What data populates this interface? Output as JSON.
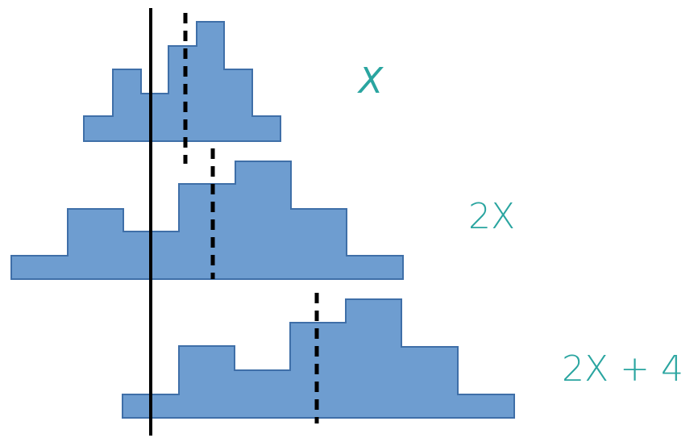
{
  "labels": {
    "top": "X",
    "middle": "2X",
    "bottom": "2X + 4"
  },
  "colors": {
    "bar_fill": "#6e9dd0",
    "bar_stroke": "#3f6fa8",
    "label_color": "#2aa5a0",
    "line_color": "#000000"
  }
}
